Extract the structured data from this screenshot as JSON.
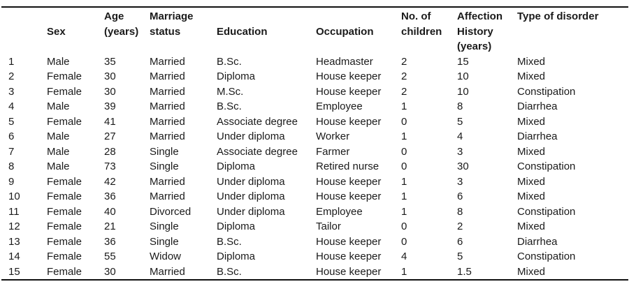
{
  "table": {
    "columns": [
      {
        "id": "num",
        "label_lines": []
      },
      {
        "id": "sex",
        "label_lines": [
          "Sex"
        ]
      },
      {
        "id": "age",
        "label_lines": [
          "Age",
          "(years)"
        ]
      },
      {
        "id": "marriage-status",
        "label_lines": [
          "Marriage",
          "status"
        ]
      },
      {
        "id": "education",
        "label_lines": [
          "Education"
        ]
      },
      {
        "id": "occupation",
        "label_lines": [
          "Occupation"
        ]
      },
      {
        "id": "no-of-children",
        "label_lines": [
          "No. of",
          "children"
        ]
      },
      {
        "id": "affection-history",
        "label_lines": [
          "Affection",
          "History",
          "(years)"
        ]
      },
      {
        "id": "type-of-disorder",
        "label_lines": [
          "Type of disorder"
        ]
      }
    ],
    "rows": [
      [
        "1",
        "Male",
        "35",
        "Married",
        "B.Sc.",
        "Headmaster",
        "2",
        "15",
        "Mixed"
      ],
      [
        "2",
        "Female",
        "30",
        "Married",
        "Diploma",
        "House keeper",
        "2",
        "10",
        "Mixed"
      ],
      [
        "3",
        "Female",
        "30",
        "Married",
        "M.Sc.",
        "House keeper",
        "2",
        "10",
        "Constipation"
      ],
      [
        "4",
        "Male",
        "39",
        "Married",
        "B.Sc.",
        "Employee",
        "1",
        "8",
        "Diarrhea"
      ],
      [
        "5",
        "Female",
        "41",
        "Married",
        "Associate degree",
        "House keeper",
        "0",
        "5",
        "Mixed"
      ],
      [
        "6",
        "Male",
        "27",
        "Married",
        "Under diploma",
        "Worker",
        "1",
        "4",
        "Diarrhea"
      ],
      [
        "7",
        "Male",
        "28",
        "Single",
        "Associate degree",
        "Farmer",
        "0",
        "3",
        "Mixed"
      ],
      [
        "8",
        "Male",
        "73",
        "Single",
        "Diploma",
        "Retired nurse",
        "0",
        "30",
        "Constipation"
      ],
      [
        "9",
        "Female",
        "42",
        "Married",
        "Under diploma",
        "House keeper",
        "1",
        "3",
        "Mixed"
      ],
      [
        "10",
        "Female",
        "36",
        "Married",
        "Under diploma",
        "House keeper",
        "1",
        "6",
        "Mixed"
      ],
      [
        "11",
        "Female",
        "40",
        "Divorced",
        "Under diploma",
        "Employee",
        "1",
        "8",
        "Constipation"
      ],
      [
        "12",
        "Female",
        "21",
        "Single",
        "Diploma",
        "Tailor",
        "0",
        "2",
        "Mixed"
      ],
      [
        "13",
        "Female",
        "36",
        "Single",
        "B.Sc.",
        "House keeper",
        "0",
        "6",
        "Diarrhea"
      ],
      [
        "14",
        "Female",
        "55",
        "Widow",
        "Diploma",
        "House keeper",
        "4",
        "5",
        "Constipation"
      ],
      [
        "15",
        "Female",
        "30",
        "Married",
        "B.Sc.",
        "House keeper",
        "1",
        "1.5",
        "Mixed"
      ]
    ]
  },
  "colors": {
    "text": "#1a1a1a",
    "rule": "#111111",
    "background": "#ffffff"
  }
}
